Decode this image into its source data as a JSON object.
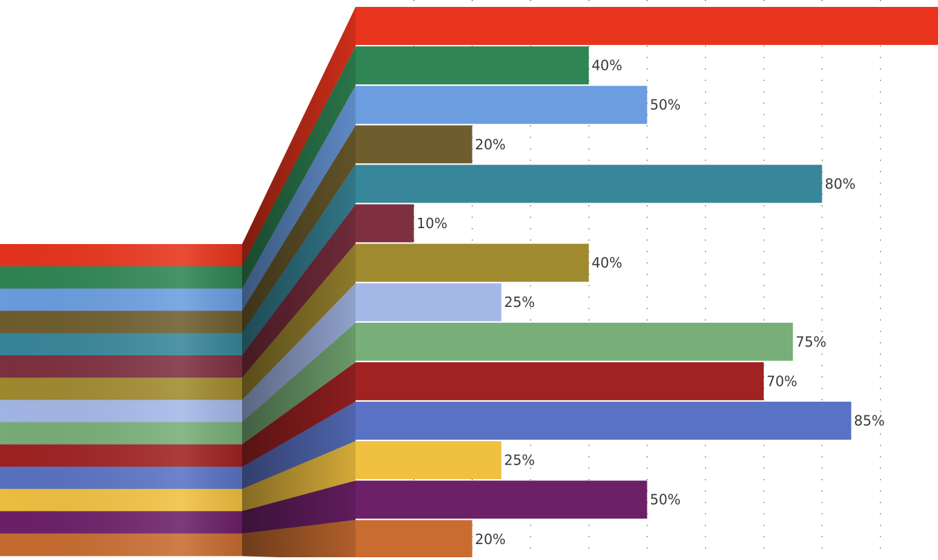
{
  "chart_data": {
    "type": "bar",
    "orientation": "horizontal",
    "title": "",
    "xlabel": "",
    "ylabel": "",
    "xlim": [
      0,
      100
    ],
    "grid": "dotted vertical lines every 10%",
    "legend": "none",
    "series": [
      {
        "values": [
          100,
          40,
          50,
          20,
          80,
          10,
          40,
          25,
          75,
          70,
          85,
          25,
          50,
          20
        ],
        "labels": [
          "",
          "40%",
          "50%",
          "20%",
          "80%",
          "10%",
          "40%",
          "25%",
          "75%",
          "70%",
          "85%",
          "25%",
          "50%",
          "20%"
        ],
        "colors": [
          "#E8341C",
          "#2F8554",
          "#6B9DE0",
          "#6E5E2E",
          "#38869A",
          "#7E3040",
          "#A08A30",
          "#A4B8E8",
          "#78AE78",
          "#A02222",
          "#5A72C4",
          "#F0C040",
          "#6C2068",
          "#C86C30"
        ]
      }
    ]
  }
}
